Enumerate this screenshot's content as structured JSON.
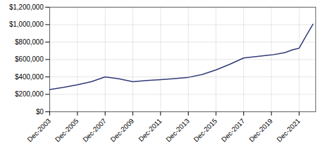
{
  "chart_data": {
    "type": "line",
    "x": [
      2003,
      2004,
      2005,
      2006,
      2007,
      2008,
      2009,
      2010,
      2011,
      2012,
      2013,
      2014,
      2015,
      2016,
      2017,
      2018,
      2019,
      2019.5,
      2020,
      2020.5,
      2021,
      2021.5,
      2022
    ],
    "values": [
      255000,
      280000,
      310000,
      345000,
      400000,
      378000,
      345000,
      358000,
      368000,
      380000,
      395000,
      428000,
      480000,
      545000,
      618000,
      635000,
      652000,
      665000,
      680000,
      710000,
      730000,
      870000,
      1005000
    ],
    "color": "#2d3776",
    "xlim": [
      2003,
      2022.2
    ],
    "xticks": [
      {
        "value": 2003,
        "label": "Dec-2003"
      },
      {
        "value": 2005,
        "label": "Dec-2005"
      },
      {
        "value": 2007,
        "label": "Dec-2007"
      },
      {
        "value": 2009,
        "label": "Dec-2009"
      },
      {
        "value": 2011,
        "label": "Dec-2011"
      },
      {
        "value": 2013,
        "label": "Dec-2013"
      },
      {
        "value": 2015,
        "label": "Dec-2015"
      },
      {
        "value": 2017,
        "label": "Dec-2017"
      },
      {
        "value": 2019,
        "label": "Dec-2019"
      },
      {
        "value": 2021,
        "label": "Dec-2021"
      }
    ],
    "ylim": [
      0,
      1200000
    ],
    "yticks": [
      {
        "value": 0,
        "label": "$0"
      },
      {
        "value": 200000,
        "label": "$200,000"
      },
      {
        "value": 400000,
        "label": "$400,000"
      },
      {
        "value": 600000,
        "label": "$600,000"
      },
      {
        "value": 800000,
        "label": "$800,000"
      },
      {
        "value": 1000000,
        "label": "$1,000,000"
      },
      {
        "value": 1200000,
        "label": "$1,200,000"
      }
    ],
    "grid": true
  }
}
